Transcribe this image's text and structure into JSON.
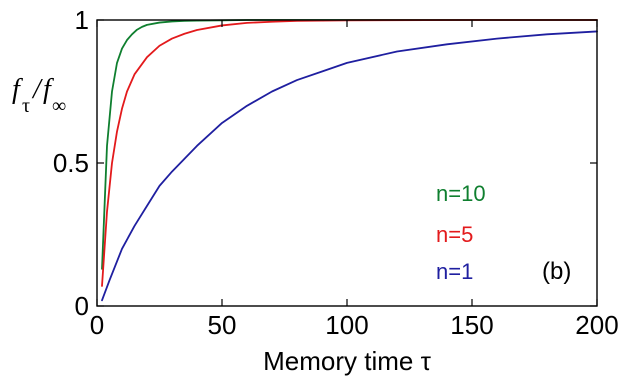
{
  "chart_data": {
    "type": "line",
    "xlabel": "Memory time τ",
    "ylabel": {
      "main": "f",
      "sub1": "τ",
      "sep": "/",
      "main2": "f",
      "sub2": "∞"
    },
    "xlim": [
      0,
      200
    ],
    "ylim": [
      0,
      1
    ],
    "xticks": [
      0,
      50,
      100,
      150,
      200
    ],
    "xtick_labels": [
      "0",
      "50",
      "100",
      "150",
      "200"
    ],
    "yticks": [
      0,
      0.5,
      1
    ],
    "ytick_labels": [
      "0",
      "0.5",
      "1"
    ],
    "grid": false,
    "panel_label": "(b)",
    "series": [
      {
        "name": "n=10",
        "color": "#0f7f2f",
        "x": [
          2,
          4,
          6,
          8,
          10,
          12,
          14,
          16,
          18,
          20,
          25,
          30,
          35,
          40,
          50,
          60,
          80,
          100,
          150,
          200
        ],
        "y": [
          0.13,
          0.56,
          0.75,
          0.85,
          0.9,
          0.93,
          0.95,
          0.966,
          0.976,
          0.983,
          0.991,
          0.995,
          0.997,
          0.998,
          0.999,
          1.0,
          1.0,
          1.0,
          1.0,
          1.0
        ]
      },
      {
        "name": "n=5",
        "color": "#e31a1c",
        "x": [
          2,
          4,
          6,
          8,
          10,
          12,
          15,
          20,
          25,
          30,
          35,
          40,
          50,
          60,
          70,
          80,
          100,
          150,
          200
        ],
        "y": [
          0.07,
          0.33,
          0.5,
          0.61,
          0.69,
          0.75,
          0.81,
          0.87,
          0.91,
          0.935,
          0.952,
          0.965,
          0.981,
          0.99,
          0.994,
          0.997,
          0.999,
          1.0,
          1.0
        ]
      },
      {
        "name": "n=1",
        "color": "#1f1fa0",
        "x": [
          2,
          5,
          10,
          15,
          20,
          25,
          30,
          40,
          50,
          60,
          70,
          80,
          90,
          100,
          120,
          140,
          160,
          180,
          200
        ],
        "y": [
          0.02,
          0.09,
          0.2,
          0.28,
          0.35,
          0.42,
          0.47,
          0.56,
          0.64,
          0.7,
          0.75,
          0.79,
          0.82,
          0.85,
          0.89,
          0.915,
          0.935,
          0.95,
          0.96
        ]
      }
    ]
  },
  "colors": {
    "axis": "#000000",
    "background": "#ffffff"
  }
}
